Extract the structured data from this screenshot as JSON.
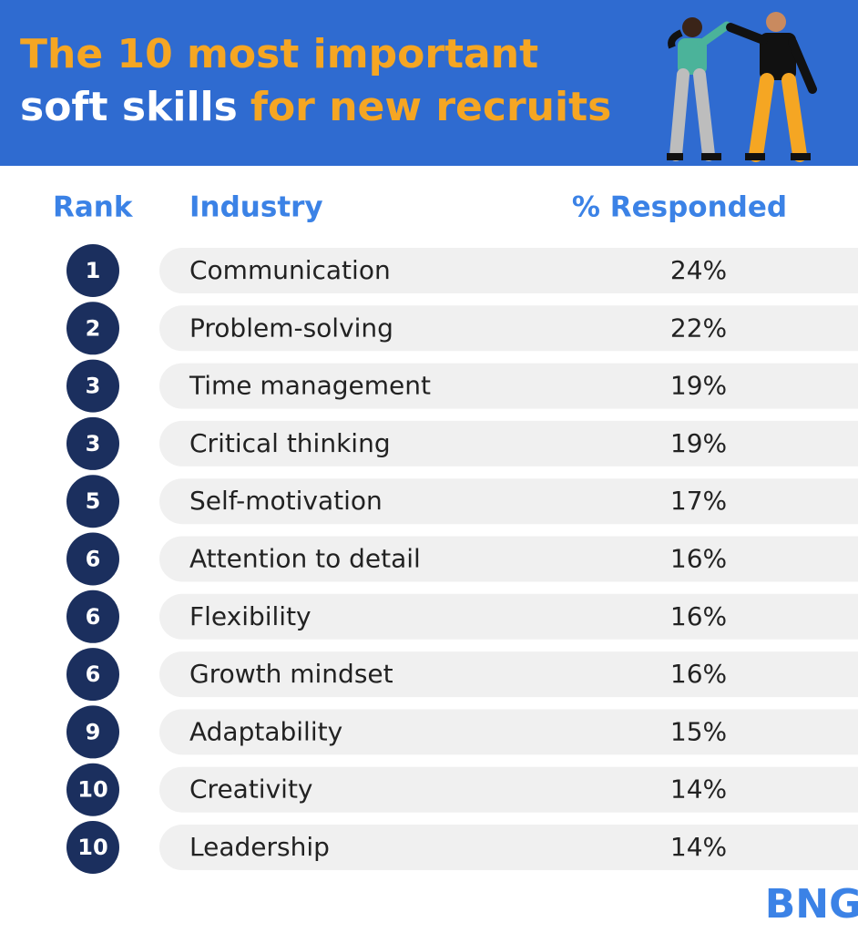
{
  "header": {
    "title_line1": "The 10 most important",
    "title_line2_white": "soft skills",
    "title_line2_orange": "for new recruits"
  },
  "table": {
    "columns": [
      "Rank",
      "Industry",
      "% Responded"
    ],
    "rows": [
      [
        "1",
        "Communication",
        "24%"
      ],
      [
        "2",
        "Problem-solving",
        "22%"
      ],
      [
        "3",
        "Time management",
        "19%"
      ],
      [
        "3",
        "Critical thinking",
        "19%"
      ],
      [
        "5",
        "Self-motivation",
        "17%"
      ],
      [
        "6",
        "Attention to detail",
        "16%"
      ],
      [
        "6",
        "Flexibility",
        "16%"
      ],
      [
        "6",
        "Growth mindset",
        "16%"
      ],
      [
        "9",
        "Adaptability",
        "15%"
      ],
      [
        "10",
        "Creativity",
        "14%"
      ],
      [
        "10",
        "Leadership",
        "14%"
      ]
    ]
  },
  "footer": {
    "logo": "BNG"
  }
}
